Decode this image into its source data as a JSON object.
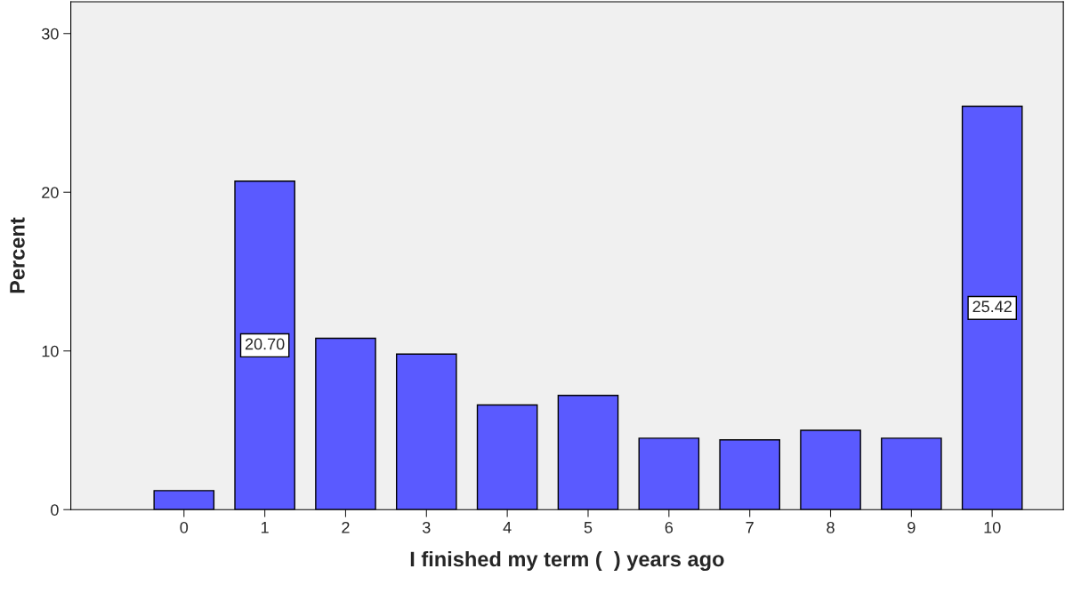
{
  "chart_data": {
    "type": "bar",
    "xlabel": "I finished my term (  ) years ago",
    "ylabel": "Percent",
    "categories": [
      "0",
      "1",
      "2",
      "3",
      "4",
      "5",
      "6",
      "7",
      "8",
      "9",
      "10"
    ],
    "values": [
      1.2,
      20.7,
      10.8,
      9.8,
      6.6,
      7.2,
      4.5,
      4.4,
      5.0,
      4.5,
      25.42
    ],
    "value_labels": [
      null,
      "20.70",
      null,
      null,
      null,
      null,
      null,
      null,
      null,
      null,
      "25.42"
    ],
    "color": "#5a5aff",
    "ylim": [
      0,
      32
    ],
    "yticks": [
      0,
      10,
      20,
      30
    ],
    "grid": false
  }
}
